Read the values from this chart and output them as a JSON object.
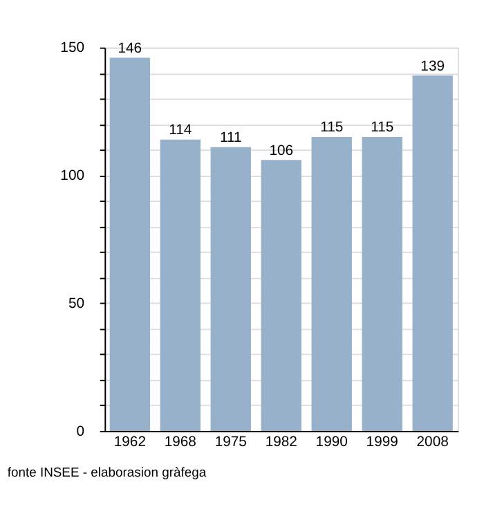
{
  "chart_data": {
    "type": "bar",
    "categories": [
      "1962",
      "1968",
      "1975",
      "1982",
      "1990",
      "1999",
      "2008"
    ],
    "values": [
      146,
      114,
      111,
      106,
      115,
      115,
      139
    ],
    "color": "#98b1cb",
    "ylim": [
      0,
      150
    ],
    "yticks": [
      0,
      {
        "value": 10,
        "label": null
      },
      {
        "value": 20,
        "label": null
      },
      {
        "value": 30,
        "label": null
      },
      {
        "value": 40,
        "label": null
      },
      50,
      {
        "value": 60,
        "label": null
      },
      {
        "value": 70,
        "label": null
      },
      {
        "value": 80,
        "label": null
      },
      {
        "value": 90,
        "label": null
      },
      100,
      {
        "value": 110,
        "label": null
      },
      {
        "value": 120,
        "label": null
      },
      {
        "value": 130,
        "label": null
      },
      {
        "value": 140,
        "label": null
      },
      150
    ],
    "grid": "y",
    "data_labels": true,
    "annotations": [
      "fonte INSEE - elaborasion gràfega"
    ]
  }
}
